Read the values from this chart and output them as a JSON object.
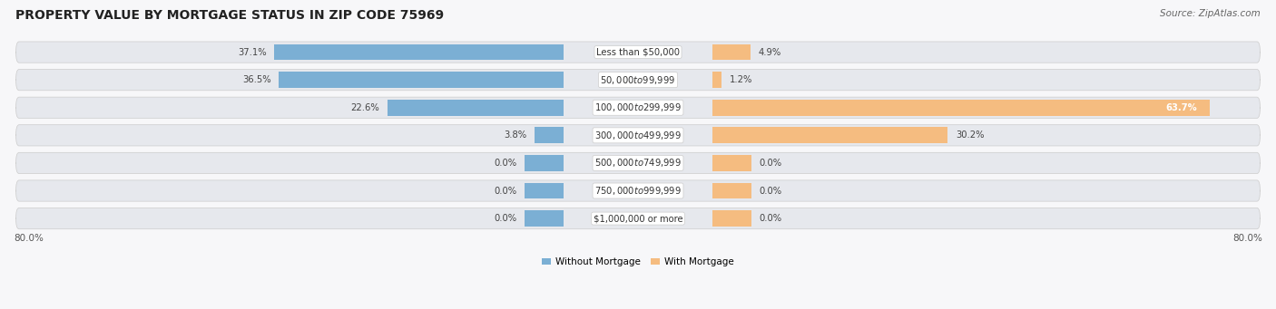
{
  "title": "PROPERTY VALUE BY MORTGAGE STATUS IN ZIP CODE 75969",
  "source": "Source: ZipAtlas.com",
  "categories": [
    "Less than $50,000",
    "$50,000 to $99,999",
    "$100,000 to $299,999",
    "$300,000 to $499,999",
    "$500,000 to $749,999",
    "$750,000 to $999,999",
    "$1,000,000 or more"
  ],
  "without_mortgage": [
    37.1,
    36.5,
    22.6,
    3.8,
    0.0,
    0.0,
    0.0
  ],
  "with_mortgage": [
    4.9,
    1.2,
    63.7,
    30.2,
    0.0,
    0.0,
    0.0
  ],
  "color_without": "#7bafd4",
  "color_with": "#f5bc80",
  "xlim": [
    -80,
    80
  ],
  "x_left_label": "80.0%",
  "x_right_label": "80.0%",
  "legend_without": "Without Mortgage",
  "legend_with": "With Mortgage",
  "title_fontsize": 10,
  "source_fontsize": 7.5,
  "bar_height": 0.58,
  "min_bar_width": 5.0,
  "label_bg_color": "#ffffff",
  "row_bg_color": "#e6e8ed",
  "row_bg_alt": "#ebebf0"
}
